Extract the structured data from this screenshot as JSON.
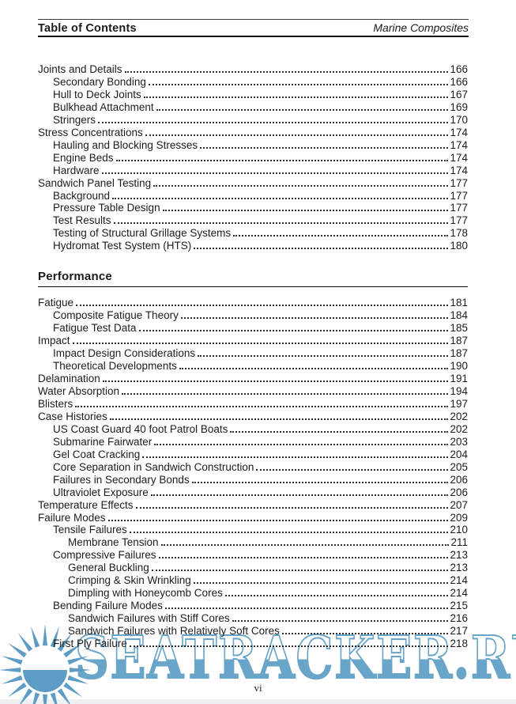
{
  "header": {
    "left": "Table of Contents",
    "right": "Marine Composites"
  },
  "sections": [
    {
      "heading": null,
      "entries": [
        {
          "title": "Joints and Details",
          "page": "166",
          "level": 0
        },
        {
          "title": "Secondary Bonding",
          "page": "166",
          "level": 1
        },
        {
          "title": "Hull to Deck Joints",
          "page": "167",
          "level": 1
        },
        {
          "title": "Bulkhead Attachment",
          "page": "169",
          "level": 1
        },
        {
          "title": "Stringers",
          "page": "170",
          "level": 1
        },
        {
          "title": "Stress Concentrations",
          "page": "174",
          "level": 0
        },
        {
          "title": "Hauling and Blocking Stresses",
          "page": "174",
          "level": 1
        },
        {
          "title": "Engine Beds",
          "page": "174",
          "level": 1
        },
        {
          "title": "Hardware",
          "page": "174",
          "level": 1
        },
        {
          "title": "Sandwich Panel Testing",
          "page": "177",
          "level": 0
        },
        {
          "title": "Background",
          "page": "177",
          "level": 1
        },
        {
          "title": "Pressure Table Design",
          "page": "177",
          "level": 1
        },
        {
          "title": "Test Results",
          "page": "177",
          "level": 1
        },
        {
          "title": "Testing of Structural Grillage Systems",
          "page": "178",
          "level": 1
        },
        {
          "title": "Hydromat Test System (HTS)",
          "page": "180",
          "level": 1
        }
      ]
    },
    {
      "heading": "Performance",
      "entries": [
        {
          "title": "Fatigue",
          "page": "181",
          "level": 0
        },
        {
          "title": "Composite Fatigue Theory",
          "page": "184",
          "level": 1
        },
        {
          "title": "Fatigue Test Data",
          "page": "185",
          "level": 1
        },
        {
          "title": "Impact",
          "page": "187",
          "level": 0
        },
        {
          "title": "Impact Design Considerations",
          "page": "187",
          "level": 1
        },
        {
          "title": "Theoretical Developments",
          "page": "190",
          "level": 1
        },
        {
          "title": "Delamination",
          "page": "191",
          "level": 0
        },
        {
          "title": "Water Absorption",
          "page": "194",
          "level": 0
        },
        {
          "title": "Blisters",
          "page": "197",
          "level": 0
        },
        {
          "title": "Case Histories",
          "page": "202",
          "level": 0
        },
        {
          "title": "US Coast Guard 40 foot Patrol Boats",
          "page": "202",
          "level": 1
        },
        {
          "title": "Submarine Fairwater",
          "page": "203",
          "level": 1
        },
        {
          "title": "Gel Coat Cracking",
          "page": "204",
          "level": 1
        },
        {
          "title": "Core Separation in Sandwich Construction",
          "page": "205",
          "level": 1
        },
        {
          "title": "Failures in Secondary Bonds",
          "page": "206",
          "level": 1
        },
        {
          "title": "Ultraviolet Exposure",
          "page": "206",
          "level": 1
        },
        {
          "title": "Temperature Effects",
          "page": "207",
          "level": 0
        },
        {
          "title": "Failure Modes",
          "page": "209",
          "level": 0
        },
        {
          "title": "Tensile Failures",
          "page": "210",
          "level": 1
        },
        {
          "title": "Membrane Tension",
          "page": "211",
          "level": 2
        },
        {
          "title": "Compressive Failures",
          "page": "213",
          "level": 1
        },
        {
          "title": "General Buckling",
          "page": "213",
          "level": 2
        },
        {
          "title": "Crimping & Skin Wrinkling",
          "page": "214",
          "level": 2
        },
        {
          "title": "Dimpling with Honeycomb Cores",
          "page": "214",
          "level": 2
        },
        {
          "title": "Bending Failure Modes",
          "page": "215",
          "level": 1
        },
        {
          "title": "Sandwich Failures with Stiff Cores",
          "page": "216",
          "level": 2
        },
        {
          "title": "Sandwich Failures with Relatively Soft Cores",
          "page": "217",
          "level": 2
        },
        {
          "title": "First Ply Failure",
          "page": "218",
          "level": 1
        }
      ]
    }
  ],
  "footer": {
    "page_number": "vi"
  },
  "watermark": {
    "text": "SEATRACKER.RU",
    "color": "#5d9dc5",
    "logo": "sun-logo"
  }
}
